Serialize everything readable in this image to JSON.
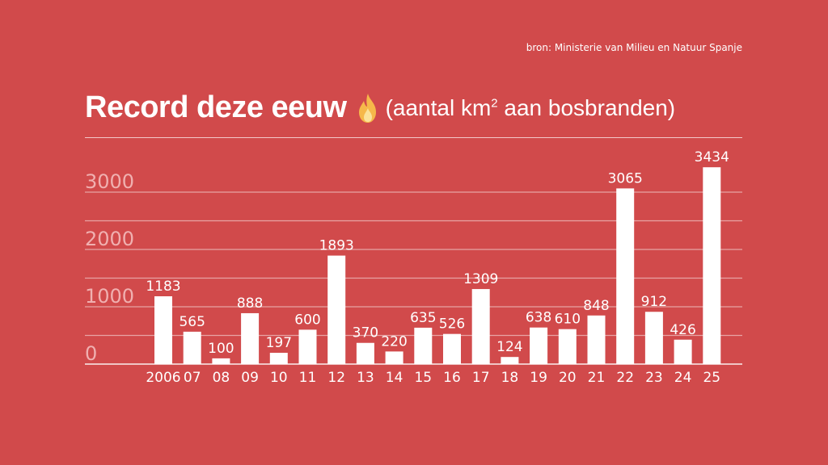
{
  "source": "bron: Ministerie van Milieu en Natuur Spanje",
  "title": {
    "main": "Record deze eeuw",
    "sub_prefix": "(aantal km",
    "sub_sup": "2",
    "sub_suffix": " aan bosbranden)"
  },
  "colors": {
    "background": "#d14a4b",
    "bar": "#ffffff",
    "gridline": "#e7a4a4",
    "tick_text": "#f0b0b0",
    "flame": "#f6b84a"
  },
  "icons": [
    "fire-icon"
  ],
  "chart_data": {
    "type": "bar",
    "title": "Record deze eeuw (aantal km2 aan bosbranden)",
    "xlabel": "",
    "ylabel": "",
    "categories": [
      "2006",
      "07",
      "08",
      "09",
      "10",
      "11",
      "12",
      "13",
      "14",
      "15",
      "16",
      "17",
      "18",
      "19",
      "20",
      "21",
      "22",
      "23",
      "24",
      "25"
    ],
    "values": [
      1183,
      565,
      100,
      888,
      197,
      600,
      1893,
      370,
      220,
      635,
      526,
      1309,
      124,
      638,
      610,
      848,
      3065,
      912,
      426,
      3434
    ],
    "yticks": [
      "0",
      "1000",
      "2000",
      "3000"
    ],
    "ylim": [
      0,
      3500
    ],
    "grid": true,
    "legend": "none"
  }
}
